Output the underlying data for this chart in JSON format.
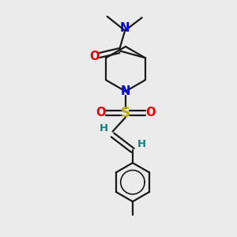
{
  "bg_color": "#ebebeb",
  "bond_color": "#1a1a1a",
  "n_color": "#0000ee",
  "o_color": "#ee0000",
  "s_color": "#bbaa00",
  "h_color": "#008888",
  "line_width": 1.6,
  "font_size": 9.5,
  "fig_size": [
    3.0,
    3.0
  ],
  "dpi": 100,
  "xlim": [
    0,
    10
  ],
  "ylim": [
    0,
    10
  ]
}
